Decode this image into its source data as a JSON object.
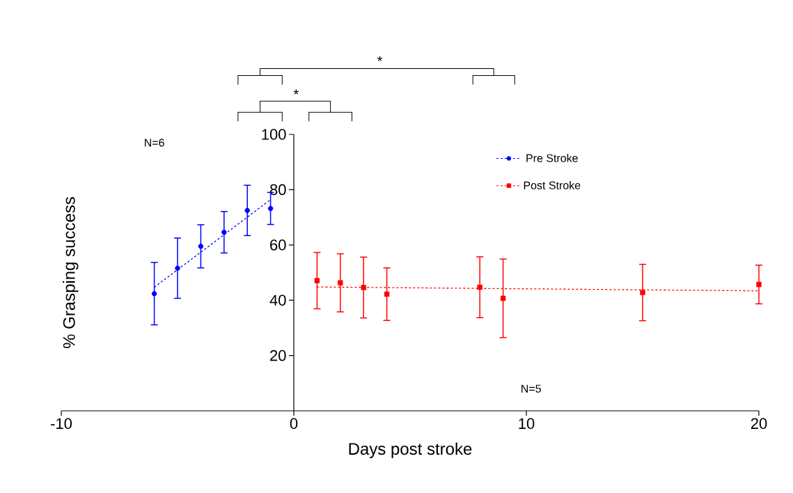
{
  "chart_data": {
    "type": "scatter",
    "xlabel": "Days post stroke",
    "ylabel": "% Grasping success",
    "xlim": [
      -10,
      20
    ],
    "ylim": [
      0,
      100
    ],
    "xticks": [
      -10,
      0,
      10,
      20
    ],
    "yticks": [
      20,
      40,
      60,
      80,
      100
    ],
    "legend": "top right",
    "grid": false,
    "line_style": "dashed",
    "series": [
      {
        "name": "Pre Stroke",
        "marker": "circle",
        "color": "#0000ff",
        "x": [
          -6,
          -5,
          -4,
          -3,
          -2,
          -1
        ],
        "values": [
          42.4,
          51.6,
          59.5,
          64.6,
          72.5,
          73.2
        ],
        "errors": [
          11.3,
          10.9,
          7.8,
          7.5,
          9.1,
          5.8
        ]
      },
      {
        "name": "Post Stroke",
        "marker": "square",
        "color": "#ff0000",
        "x": [
          1,
          2,
          3,
          4,
          8,
          9,
          15,
          20
        ],
        "values": [
          47.1,
          46.3,
          44.6,
          42.2,
          44.7,
          40.7,
          42.8,
          45.7
        ],
        "errors": [
          10.2,
          10.5,
          11,
          9.5,
          11,
          14.2,
          10.2,
          7
        ]
      },
      {
        "type": "line",
        "color": "#0000ff",
        "x": [
          -6,
          -1
        ],
        "values": [
          44.7,
          76.4
        ]
      },
      {
        "type": "line",
        "color": "#ff0000",
        "x": [
          1,
          20
        ],
        "values": [
          44.8,
          43.4
        ]
      }
    ],
    "annotations": [
      "*",
      "*",
      "N=6",
      "N=5"
    ]
  }
}
